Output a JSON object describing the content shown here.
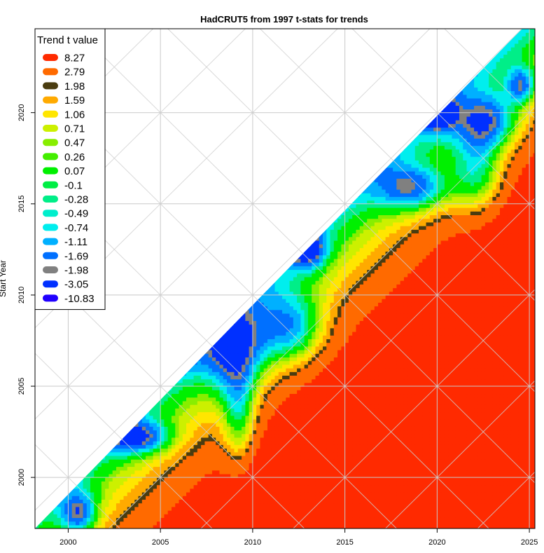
{
  "chart_data": {
    "type": "heatmap",
    "title": "HadCRUT5  from 1997  t-stats for trends",
    "xlabel": "",
    "ylabel": "Start Year",
    "xlim": [
      1998.2,
      2025.3
    ],
    "ylim": [
      1997.2,
      2024.6
    ],
    "x_ticks": [
      2000,
      2005,
      2010,
      2015,
      2020,
      2025
    ],
    "y_ticks": [
      2000,
      2005,
      2010,
      2015,
      2020
    ],
    "grid": true,
    "legend": {
      "title": "Trend t value",
      "placement": "top-left",
      "entries": [
        {
          "label": "8.27",
          "color": "#ff2a00"
        },
        {
          "label": "2.79",
          "color": "#ff6a00"
        },
        {
          "label": "1.98",
          "color": "#4a3c10"
        },
        {
          "label": "1.59",
          "color": "#ffaa00"
        },
        {
          "label": "1.06",
          "color": "#ffe600"
        },
        {
          "label": "0.71",
          "color": "#ccf000"
        },
        {
          "label": "0.47",
          "color": "#88ee00"
        },
        {
          "label": "0.26",
          "color": "#44ee00"
        },
        {
          "label": "0.07",
          "color": "#00f000"
        },
        {
          "label": "-0.1",
          "color": "#00ee44"
        },
        {
          "label": "-0.28",
          "color": "#00ee88"
        },
        {
          "label": "-0.49",
          "color": "#00eecc"
        },
        {
          "label": "-0.74",
          "color": "#00eeee"
        },
        {
          "label": "-1.11",
          "color": "#00b0ff"
        },
        {
          "label": "-1.69",
          "color": "#0070ff"
        },
        {
          "label": "-1.98",
          "color": "#808080"
        },
        {
          "label": "-3.05",
          "color": "#0030ff"
        },
        {
          "label": "-10.83",
          "color": "#2000ff"
        }
      ]
    }
  }
}
